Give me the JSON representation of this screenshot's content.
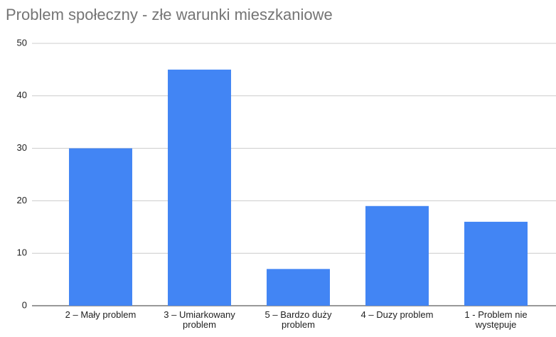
{
  "chart_data": {
    "type": "bar",
    "title": "Problem społeczny - złe warunki mieszkaniowe",
    "categories": [
      "2 – Mały problem",
      "3 – Umiarkowany problem",
      "5 – Bardzo duży problem",
      "4 – Duzy problem",
      "1 - Problem nie występuje"
    ],
    "values": [
      30,
      45,
      7,
      19,
      16
    ],
    "color": "#4285f4",
    "ylim": [
      0,
      50
    ],
    "yticks": [
      0,
      10,
      20,
      30,
      40,
      50
    ],
    "grid": true
  }
}
